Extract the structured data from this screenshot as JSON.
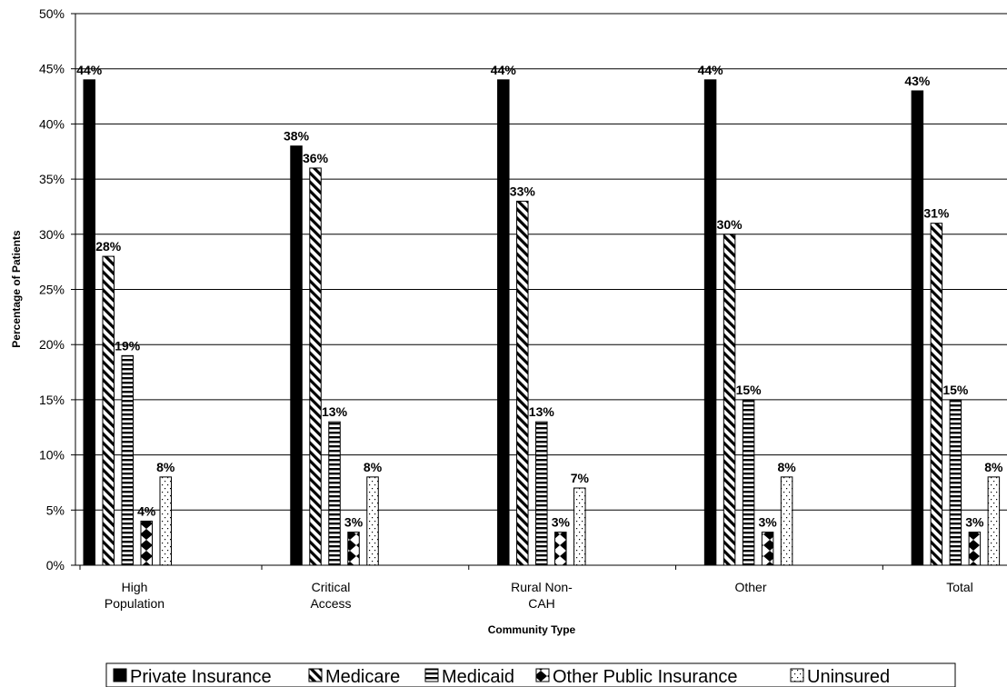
{
  "chart_data": {
    "type": "bar",
    "xlabel": "Community Type",
    "ylabel": "Percentage of Patients",
    "ylim": [
      0,
      50
    ],
    "ytick_step": 5,
    "yticks": [
      "0%",
      "5%",
      "10%",
      "15%",
      "20%",
      "25%",
      "30%",
      "35%",
      "40%",
      "45%",
      "50%"
    ],
    "grid": true,
    "legend_position": "bottom",
    "categories": [
      {
        "lines": [
          "High",
          "Population"
        ]
      },
      {
        "lines": [
          "Critical",
          "Access"
        ]
      },
      {
        "lines": [
          "Rural Non-",
          "CAH"
        ]
      },
      {
        "lines": [
          "Other"
        ]
      },
      {
        "lines": [
          "Total"
        ]
      }
    ],
    "series": [
      {
        "name": "Private Insurance",
        "pattern": "solid",
        "values": [
          44,
          38,
          44,
          44,
          43
        ],
        "labels": [
          "44%",
          "38%",
          "44%",
          "44%",
          "43%"
        ]
      },
      {
        "name": "Medicare",
        "pattern": "diagonal",
        "values": [
          28,
          36,
          33,
          30,
          31
        ],
        "labels": [
          "28%",
          "36%",
          "33%",
          "30%",
          "31%"
        ]
      },
      {
        "name": "Medicaid",
        "pattern": "horizontal",
        "values": [
          19,
          13,
          13,
          15,
          15
        ],
        "labels": [
          "19%",
          "13%",
          "13%",
          "15%",
          "15%"
        ]
      },
      {
        "name": "Other Public Insurance",
        "pattern": "hourglass",
        "values": [
          4,
          3,
          3,
          3,
          3
        ],
        "labels": [
          "4%",
          "3%",
          "3%",
          "3%",
          "3%"
        ]
      },
      {
        "name": "Uninsured",
        "pattern": "dots",
        "values": [
          8,
          8,
          7,
          8,
          8
        ],
        "labels": [
          "8%",
          "8%",
          "7%",
          "8%",
          "8%"
        ]
      }
    ]
  }
}
